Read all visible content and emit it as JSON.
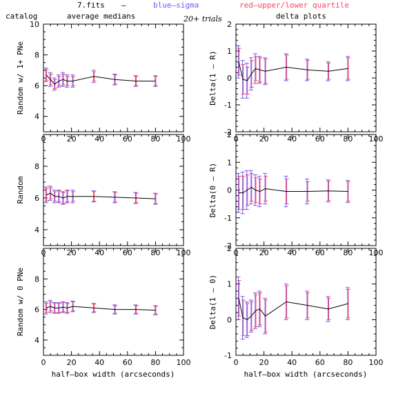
{
  "header": {
    "file_label": "7.fits",
    "dash": "–",
    "blue_label": "blue–sigma",
    "red_label": "red–upper/lower quartile",
    "catalog_label": "catalog",
    "medians_label": "average medians",
    "trials_label": "20+ trials",
    "delta_label": "delta plots"
  },
  "colors": {
    "blue": "#6a5cf5",
    "red": "#ff4060",
    "line": "#000000",
    "errorbar": "#b040c0"
  },
  "xlabel_left": "half–box width (arcseconds)",
  "xlabel_right": "half–box width (arcseconds)",
  "chart_data": [
    {
      "type": "line",
      "panel": "left-top",
      "ylabel": "Random w/ 1+ PNe",
      "xlim": [
        0,
        100
      ],
      "ylim": [
        3,
        10
      ],
      "xticks": [
        0,
        20,
        40,
        60,
        80,
        100
      ],
      "yticks": [
        4,
        6,
        8,
        10
      ],
      "x": [
        2,
        5,
        8,
        11,
        14,
        17,
        21,
        36,
        51,
        66,
        80
      ],
      "y": [
        6.7,
        6.4,
        6.1,
        6.3,
        6.4,
        6.3,
        6.3,
        6.6,
        6.4,
        6.3,
        6.3
      ],
      "sigma": [
        0.45,
        0.45,
        0.4,
        0.4,
        0.45,
        0.4,
        0.4,
        0.4,
        0.35,
        0.35,
        0.35
      ],
      "quartile": [
        0.35,
        0.35,
        0.3,
        0.3,
        0.35,
        0.3,
        0.3,
        0.3,
        0.3,
        0.3,
        0.3
      ]
    },
    {
      "type": "line",
      "panel": "right-top",
      "ylabel": "Delta(1 – R)",
      "xlim": [
        0,
        100
      ],
      "ylim": [
        -2,
        2
      ],
      "xticks": [
        0,
        20,
        40,
        60,
        80,
        100
      ],
      "yticks": [
        -2,
        -1,
        0,
        1,
        2
      ],
      "x": [
        2,
        5,
        8,
        11,
        14,
        17,
        21,
        36,
        51,
        66,
        80
      ],
      "y": [
        0.6,
        -0.05,
        -0.1,
        0.15,
        0.35,
        0.3,
        0.25,
        0.4,
        0.3,
        0.25,
        0.35
      ],
      "sigma": [
        0.6,
        0.7,
        0.65,
        0.6,
        0.55,
        0.5,
        0.5,
        0.5,
        0.4,
        0.35,
        0.45
      ],
      "quartile": [
        0.5,
        0.55,
        0.5,
        0.5,
        0.45,
        0.45,
        0.45,
        0.45,
        0.35,
        0.3,
        0.4
      ]
    },
    {
      "type": "line",
      "panel": "left-middle",
      "ylabel": "Random",
      "xlim": [
        0,
        100
      ],
      "ylim": [
        3,
        10
      ],
      "xticks": [
        0,
        20,
        40,
        60,
        80,
        100
      ],
      "yticks": [
        4,
        6,
        8
      ],
      "x": [
        2,
        5,
        8,
        11,
        14,
        17,
        21,
        36,
        51,
        66,
        80
      ],
      "y": [
        6.2,
        6.3,
        6.1,
        6.1,
        6.0,
        6.1,
        6.1,
        6.1,
        6.05,
        6.0,
        5.95
      ],
      "sigma": [
        0.5,
        0.45,
        0.4,
        0.4,
        0.4,
        0.4,
        0.4,
        0.35,
        0.35,
        0.35,
        0.35
      ],
      "quartile": [
        0.4,
        0.35,
        0.3,
        0.35,
        0.35,
        0.35,
        0.3,
        0.3,
        0.3,
        0.3,
        0.3
      ]
    },
    {
      "type": "line",
      "panel": "right-middle",
      "ylabel": "Delta(0 – R)",
      "xlim": [
        0,
        100
      ],
      "ylim": [
        -2,
        2
      ],
      "xticks": [
        0,
        20,
        40,
        60,
        80,
        100
      ],
      "yticks": [
        -2,
        -1,
        0,
        1,
        2
      ],
      "x": [
        2,
        5,
        8,
        11,
        14,
        17,
        21,
        36,
        51,
        66,
        80
      ],
      "y": [
        -0.1,
        -0.1,
        0.0,
        0.1,
        0.0,
        -0.05,
        0.05,
        -0.05,
        -0.05,
        -0.03,
        -0.05
      ],
      "sigma": [
        0.7,
        0.75,
        0.7,
        0.6,
        0.55,
        0.55,
        0.55,
        0.55,
        0.45,
        0.4,
        0.4
      ],
      "quartile": [
        0.6,
        0.6,
        0.55,
        0.5,
        0.45,
        0.45,
        0.45,
        0.45,
        0.35,
        0.35,
        0.35
      ]
    },
    {
      "type": "line",
      "panel": "left-bottom",
      "ylabel": "Random w/ 0 PNe",
      "xlim": [
        0,
        100
      ],
      "ylim": [
        3,
        10
      ],
      "xticks": [
        0,
        20,
        40,
        60,
        80,
        100
      ],
      "yticks": [
        4,
        6,
        8
      ],
      "x": [
        2,
        5,
        8,
        11,
        14,
        17,
        21,
        36,
        51,
        66,
        80
      ],
      "y": [
        6.1,
        6.2,
        6.1,
        6.1,
        6.15,
        6.1,
        6.2,
        6.1,
        6.0,
        6.0,
        5.95
      ],
      "sigma": [
        0.4,
        0.4,
        0.35,
        0.35,
        0.35,
        0.35,
        0.35,
        0.3,
        0.3,
        0.3,
        0.3
      ],
      "quartile": [
        0.3,
        0.3,
        0.3,
        0.3,
        0.3,
        0.3,
        0.3,
        0.25,
        0.25,
        0.25,
        0.25
      ]
    },
    {
      "type": "line",
      "panel": "right-bottom",
      "ylabel": "Delta(1 – 0)",
      "xlim": [
        0,
        100
      ],
      "ylim": [
        -1,
        2
      ],
      "xticks": [
        0,
        20,
        40,
        60,
        80,
        100
      ],
      "yticks": [
        -1,
        0,
        1,
        2
      ],
      "x": [
        2,
        5,
        8,
        11,
        14,
        17,
        21,
        36,
        51,
        66,
        80
      ],
      "y": [
        0.6,
        0.05,
        0.0,
        0.1,
        0.25,
        0.3,
        0.1,
        0.5,
        0.4,
        0.3,
        0.45
      ],
      "sigma": [
        0.6,
        0.6,
        0.5,
        0.45,
        0.5,
        0.5,
        0.5,
        0.5,
        0.4,
        0.35,
        0.45
      ],
      "quartile": [
        0.5,
        0.5,
        0.45,
        0.4,
        0.45,
        0.45,
        0.45,
        0.45,
        0.35,
        0.3,
        0.4
      ]
    }
  ]
}
